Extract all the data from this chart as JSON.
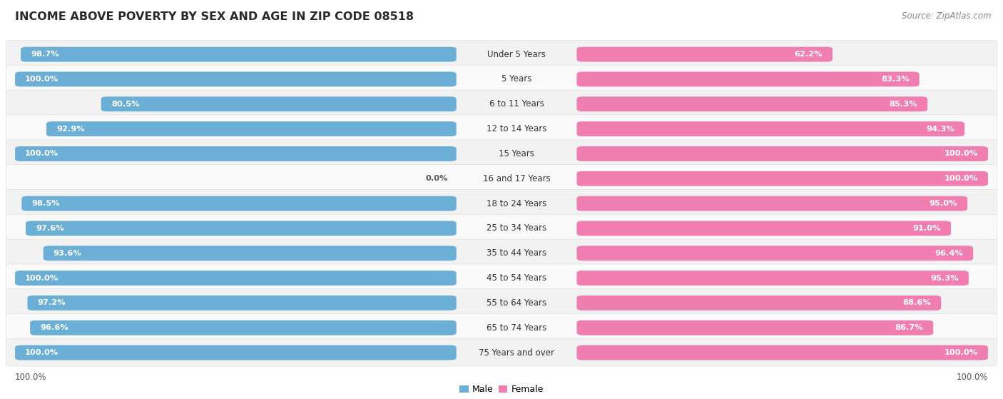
{
  "title": "INCOME ABOVE POVERTY BY SEX AND AGE IN ZIP CODE 08518",
  "source": "Source: ZipAtlas.com",
  "categories": [
    "Under 5 Years",
    "5 Years",
    "6 to 11 Years",
    "12 to 14 Years",
    "15 Years",
    "16 and 17 Years",
    "18 to 24 Years",
    "25 to 34 Years",
    "35 to 44 Years",
    "45 to 54 Years",
    "55 to 64 Years",
    "65 to 74 Years",
    "75 Years and over"
  ],
  "male_values": [
    98.7,
    100.0,
    80.5,
    92.9,
    100.0,
    0.0,
    98.5,
    97.6,
    93.6,
    100.0,
    97.2,
    96.6,
    100.0
  ],
  "female_values": [
    62.2,
    83.3,
    85.3,
    94.3,
    100.0,
    100.0,
    95.0,
    91.0,
    96.4,
    95.3,
    88.6,
    86.7,
    100.0
  ],
  "male_color": "#6BAED6",
  "female_color": "#F07EB0",
  "male_color_zero": "#B8D8ED",
  "row_bg_even": "#F2F2F2",
  "row_bg_odd": "#FAFAFA",
  "row_border": "#E0E0E0",
  "title_fontsize": 11.5,
  "value_fontsize": 8.2,
  "cat_fontsize": 8.5,
  "axis_fontsize": 8.5,
  "legend_fontsize": 9.0,
  "source_fontsize": 8.5
}
